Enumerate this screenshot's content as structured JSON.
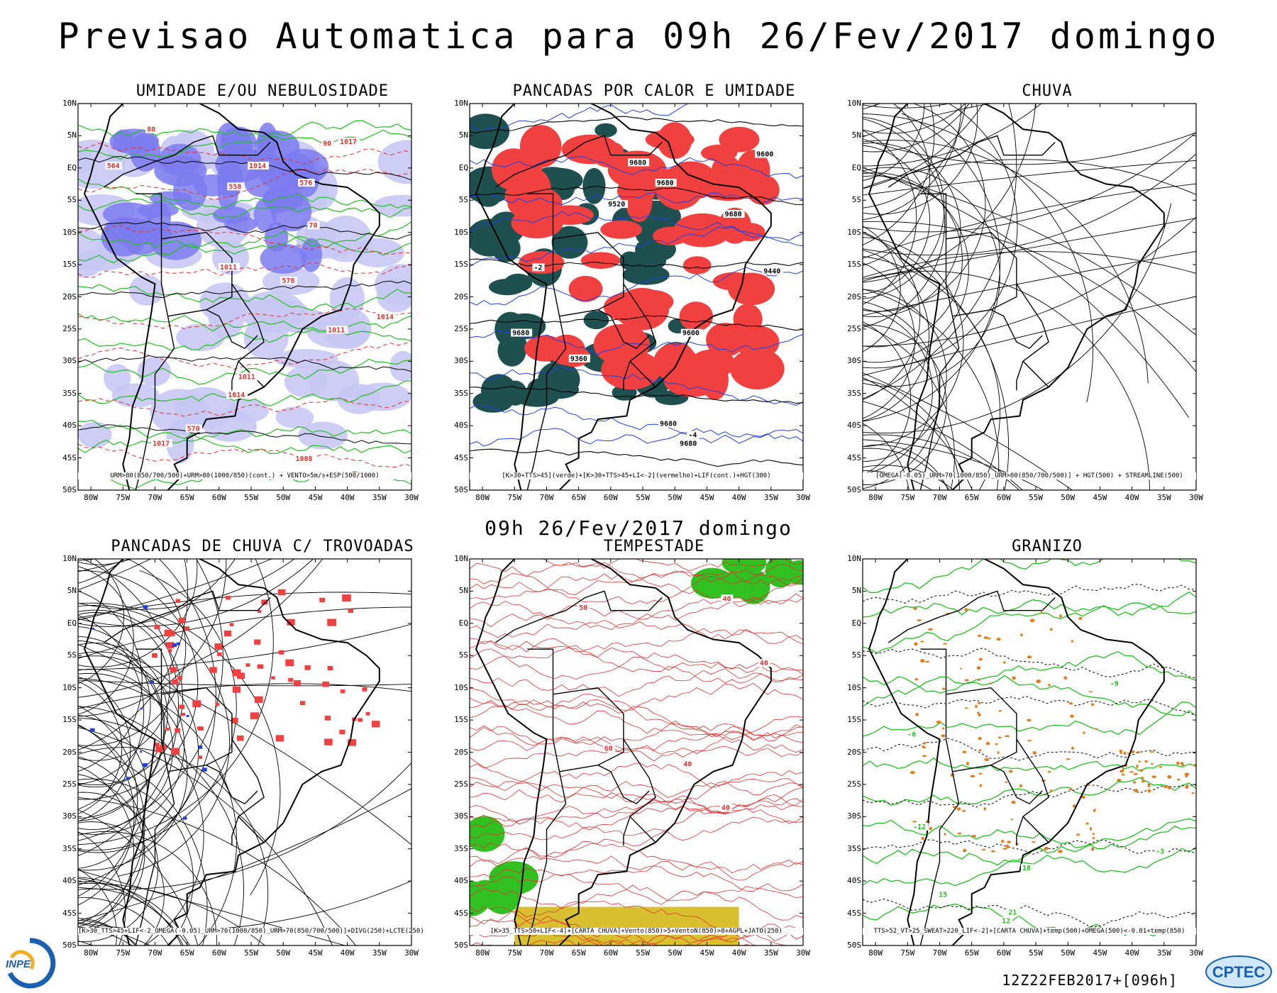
{
  "title": "Previsao Automatica  para 09h 26/Fev/2017 domingo",
  "subtitle": "09h 26/Fev/2017 domingo",
  "footer_stamp": "12Z22FEB2017+[096h]",
  "logos": {
    "left": "INPE",
    "right": "CPTEC"
  },
  "axes": {
    "lat_labels": [
      "10N",
      "5N",
      "EQ",
      "5S",
      "10S",
      "15S",
      "20S",
      "25S",
      "30S",
      "35S",
      "40S",
      "45S",
      "50S"
    ],
    "lon_labels": [
      "80W",
      "75W",
      "70W",
      "65W",
      "60W",
      "55W",
      "50W",
      "45W",
      "40W",
      "35W",
      "30W"
    ]
  },
  "panels": [
    {
      "title": "UMIDADE E/OU NEBULOSIDADE",
      "caption": "URM>80(850/700/500)+URM>80(1000/850)(cont.) + VENTO>5m/s+ESP(500/1000)",
      "contour_labels": [
        "1014",
        "1011",
        "1011",
        "1017",
        "1014",
        "1014",
        "1008",
        "1017",
        "1011",
        "570",
        "576",
        "578",
        "564",
        "558",
        "90",
        "80",
        "70"
      ]
    },
    {
      "title": "PANCADAS POR CALOR E UMIDADE",
      "caption": "[K>30+TTS>45](verde)+[K>30+TTS>45+LI<-2](vermelho)+LIF(cont.)+HGT(300)",
      "contour_labels": [
        "9680",
        "9680",
        "9680",
        "9680",
        "9680",
        "9680",
        "9600",
        "9600",
        "9520",
        "9440",
        "9360",
        "-2",
        "-4"
      ]
    },
    {
      "title": "CHUVA",
      "caption": "[OMEGA(-0.05)_URM>70(1000/850)_URM>80(850/700/500)] + HGT(500) + STREAMLINE(500)",
      "contour_labels": []
    },
    {
      "title": "PANCADAS DE CHUVA C/ TROVOADAS",
      "caption": "[K>30_TTS>45+LIF<-2_OMEGA(-0.05)_URM>70(1000/850)_URM>70(850/700/500)]+DIVG(250)+LCTE(250)",
      "contour_labels": []
    },
    {
      "title": "TEMPESTADE",
      "caption": "[K>35_TTS>50+LIF<-4]+[CARTA CHUVA]+Vento(850)>5+VentoN(850)>8+AGPL+JATO(250)",
      "contour_labels": [
        "40",
        "50",
        "60",
        "40",
        "40",
        "40"
      ]
    },
    {
      "title": "GRANIZO",
      "caption": "TTS>52_VT>25_SWEAT>220_LIF<-2]+[CARTA CHUVA]+temp(500)+OMEGA(500)<-0.01+temp(850)",
      "contour_labels": [
        "18",
        "15",
        "12",
        "-6",
        "-9",
        "21",
        "-12",
        "-3"
      ]
    }
  ],
  "colors": {
    "humidity_blue": "#7b7bf0",
    "humidity_light": "#c8c8f5",
    "green_contour": "#20c020",
    "red_contour": "#e03030",
    "dark_teal": "#1f5050",
    "heat_red": "#f04040",
    "storm_green": "#30c020",
    "storm_yellow": "#d8c030",
    "orange_dots": "#e08020",
    "blue_contour": "#2040e0"
  }
}
